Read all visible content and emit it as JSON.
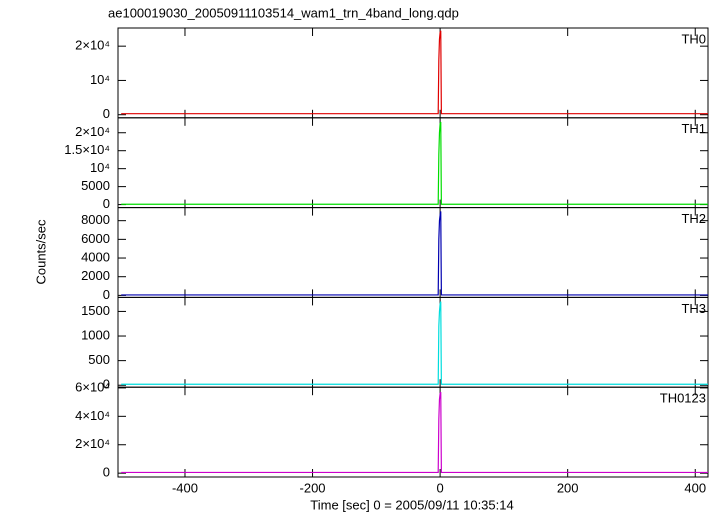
{
  "chart_data": [
    {
      "type": "line",
      "title": "ae100019030_20050911103514_wam1_trn_4band_long.qdp",
      "x": [
        -500,
        -200,
        -3,
        -2,
        -1,
        0,
        1,
        2,
        3,
        200,
        420
      ],
      "series": [
        {
          "name": "TH0",
          "color": "#e00000",
          "values": [
            300,
            300,
            300,
            16000,
            22000,
            24000,
            24500,
            300,
            300,
            300,
            300
          ]
        }
      ],
      "xlim": [
        -505,
        420
      ],
      "xticks": [
        -400,
        -200,
        0,
        200,
        400
      ],
      "ylim": [
        -900,
        25300
      ],
      "yticks": [
        0,
        {
          "value": 10000,
          "label": "10⁴"
        },
        {
          "value": 20000,
          "label": "2×10⁴"
        }
      ]
    },
    {
      "type": "line",
      "x": [
        -500,
        -200,
        -3,
        -2,
        -1,
        0,
        1,
        2,
        3,
        200,
        420
      ],
      "series": [
        {
          "name": "TH1",
          "color": "#00dd00",
          "values": [
            100,
            100,
            100,
            14000,
            20000,
            22500,
            23000,
            100,
            100,
            100,
            100
          ]
        }
      ],
      "xlim": [
        -505,
        420
      ],
      "xticks": [
        -400,
        -200,
        0,
        200,
        400
      ],
      "ylim": [
        -840,
        24160
      ],
      "yticks": [
        0,
        5000,
        {
          "value": 10000,
          "label": "10⁴"
        },
        {
          "value": 15000,
          "label": "1.5×10⁴"
        },
        {
          "value": 20000,
          "label": "2×10⁴"
        }
      ]
    },
    {
      "type": "line",
      "y_label": "Counts/sec",
      "x": [
        -500,
        -200,
        -3,
        -2,
        -1,
        0,
        1,
        2,
        3,
        200,
        420
      ],
      "series": [
        {
          "name": "TH2",
          "color": "#0000b0",
          "values": [
            50,
            50,
            50,
            6000,
            8000,
            8600,
            9000,
            50,
            50,
            50,
            50
          ]
        }
      ],
      "xlim": [
        -505,
        420
      ],
      "xticks": [
        -400,
        -200,
        0,
        200,
        400
      ],
      "ylim": [
        -216,
        9400
      ],
      "yticks": [
        0,
        2000,
        4000,
        6000,
        8000
      ]
    },
    {
      "type": "line",
      "x": [
        -500,
        -200,
        -3,
        -2,
        -1,
        0,
        1,
        2,
        3,
        200,
        420
      ],
      "series": [
        {
          "name": "TH3",
          "color": "#00dddd",
          "values": [
            20,
            20,
            20,
            1200,
            1500,
            1650,
            1700,
            20,
            20,
            20,
            20
          ]
        }
      ],
      "xlim": [
        -505,
        420
      ],
      "xticks": [
        -400,
        -200,
        0,
        200,
        400
      ],
      "ylim": [
        -40,
        1785
      ],
      "yticks": [
        0,
        500,
        1000,
        1500
      ]
    },
    {
      "type": "line",
      "x_label": "Time [sec] 0 = 2005/09/11 10:35:14",
      "x": [
        -500,
        -200,
        -3,
        -2,
        -1,
        0,
        1,
        2,
        3,
        200,
        420
      ],
      "series": [
        {
          "name": "TH0123",
          "color": "#cc00cc",
          "values": [
            500,
            500,
            500,
            38000,
            52000,
            56000,
            57000,
            500,
            500,
            500,
            500
          ]
        }
      ],
      "xlim": [
        -505,
        420
      ],
      "xticks": [
        -400,
        -200,
        0,
        200,
        400
      ],
      "ylim": [
        -2700,
        60500
      ],
      "yticks": [
        0,
        {
          "value": 20000,
          "label": "2×10⁴"
        },
        {
          "value": 40000,
          "label": "4×10⁴"
        },
        {
          "value": 60000,
          "label": "6×10⁴"
        }
      ]
    }
  ]
}
